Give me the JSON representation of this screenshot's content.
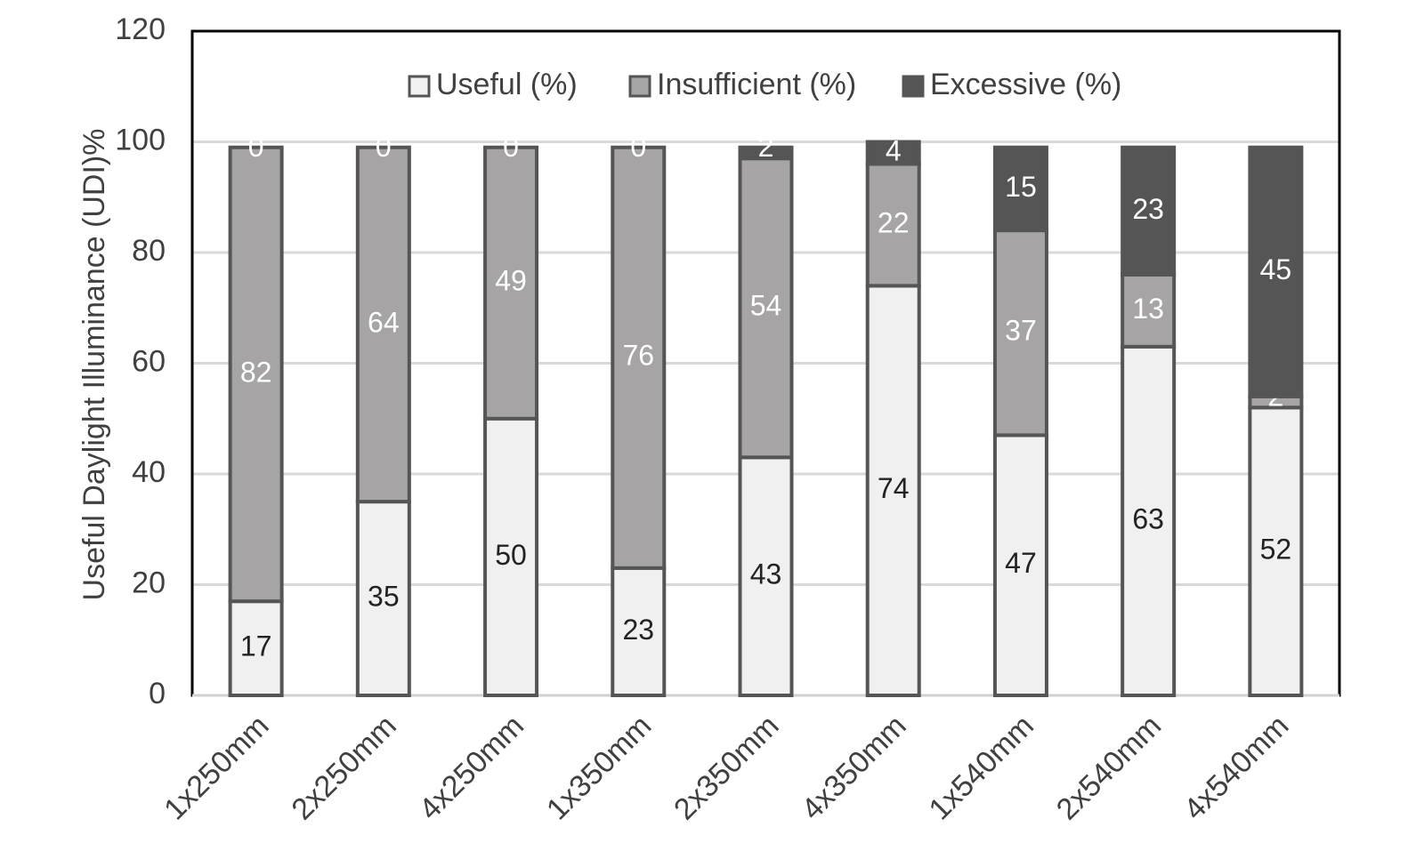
{
  "chart_data": {
    "type": "stacked-bar",
    "y_label": "Useful Daylight Illuminance (UDI)%",
    "categories": [
      "1x250mm",
      "2x250mm",
      "4x250mm",
      "1x350mm",
      "2x350mm",
      "4x350mm",
      "1x540mm",
      "2x540mm",
      "4x540mm"
    ],
    "series": [
      {
        "name": "Useful (%)",
        "color": "#f0f0f0",
        "label_color": "#222222",
        "values": [
          17,
          35,
          50,
          23,
          43,
          74,
          47,
          63,
          52
        ]
      },
      {
        "name": "Insufficient (%)",
        "color": "#a6a4a4",
        "label_color": "#ffffff",
        "values": [
          82,
          64,
          49,
          76,
          54,
          22,
          37,
          13,
          2
        ]
      },
      {
        "name": "Excessive (%)",
        "color": "#555555",
        "label_color": "#ffffff",
        "values": [
          0,
          0,
          0,
          0,
          2,
          4,
          15,
          23,
          45
        ]
      }
    ],
    "ylim": [
      0,
      120
    ],
    "yticks": [
      0,
      20,
      40,
      60,
      80,
      100,
      120
    ],
    "grid": true,
    "legend": "top"
  }
}
